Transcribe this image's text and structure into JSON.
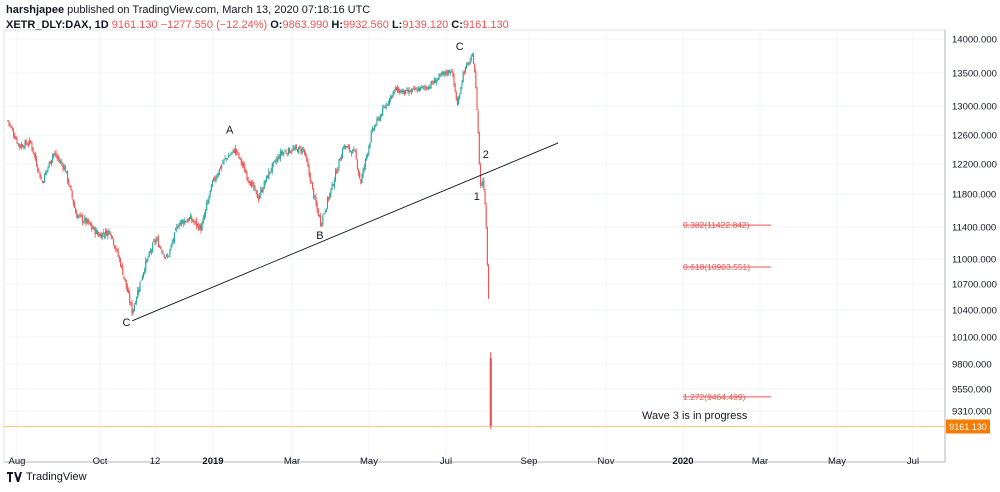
{
  "header": {
    "publisher": "harshjapee",
    "publisher_rest": "published on TradingView.com, March 13, 2020 07:18:16 UTC",
    "symbol": "XETR_DLY:DAX, 1D",
    "last": "9161.130",
    "change": "−1277.550 (−12.24%)",
    "o_label": "O:",
    "o_val": "9863.990",
    "h_label": "H:",
    "h_val": "9932.560",
    "l_label": "L:",
    "l_val": "9139.120",
    "c_label": "C:",
    "c_val": "9161.130"
  },
  "footer": {
    "brand": "TradingView"
  },
  "chart_data": {
    "type": "candlestick",
    "y_ticks": [
      14000,
      13500,
      13000,
      12600,
      12200,
      11800,
      11400,
      11000,
      10700,
      10400,
      10100,
      9800,
      9550,
      9310
    ],
    "x_tick_labels": [
      "Aug",
      "Oct",
      "12",
      "2019",
      "Mar",
      "May",
      "Jul",
      "Sep",
      "Nov",
      "2020",
      "Mar",
      "May",
      "Jul"
    ],
    "x_tick_bold": [
      false,
      false,
      false,
      true,
      false,
      false,
      false,
      false,
      false,
      true,
      false,
      false,
      false
    ],
    "price_label": "9161.130",
    "price_line_value": 9161.13,
    "path": [
      [
        "2018-07-27",
        12800
      ],
      [
        "2018-08-10",
        12450
      ],
      [
        "2018-08-24",
        12500
      ],
      [
        "2018-09-07",
        11950
      ],
      [
        "2018-09-21",
        12350
      ],
      [
        "2018-10-05",
        12150
      ],
      [
        "2018-10-19",
        11550
      ],
      [
        "2018-11-02",
        11450
      ],
      [
        "2018-11-16",
        11300
      ],
      [
        "2018-11-30",
        11350
      ],
      [
        "2018-12-14",
        10900
      ],
      [
        "2018-12-27",
        10380
      ],
      [
        "2019-01-11",
        10900
      ],
      [
        "2019-01-25",
        11250
      ],
      [
        "2019-02-08",
        11000
      ],
      [
        "2019-02-22",
        11450
      ],
      [
        "2019-03-08",
        11500
      ],
      [
        "2019-03-22",
        11380
      ],
      [
        "2019-04-05",
        11950
      ],
      [
        "2019-04-19",
        12250
      ],
      [
        "2019-05-03",
        12400
      ],
      [
        "2019-05-17",
        12050
      ],
      [
        "2019-05-31",
        11750
      ],
      [
        "2019-06-14",
        12100
      ],
      [
        "2019-06-28",
        12350
      ],
      [
        "2019-07-12",
        12400
      ],
      [
        "2019-07-26",
        12400
      ],
      [
        "2019-08-09",
        11700
      ],
      [
        "2019-08-16",
        11450
      ],
      [
        "2019-08-30",
        11900
      ],
      [
        "2019-09-13",
        12450
      ],
      [
        "2019-09-27",
        12350
      ],
      [
        "2019-10-04",
        11950
      ],
      [
        "2019-10-18",
        12650
      ],
      [
        "2019-11-01",
        12950
      ],
      [
        "2019-11-15",
        13250
      ],
      [
        "2019-11-29",
        13200
      ],
      [
        "2019-12-13",
        13250
      ],
      [
        "2019-12-27",
        13300
      ],
      [
        "2020-01-10",
        13450
      ],
      [
        "2020-01-24",
        13550
      ],
      [
        "2020-01-31",
        13000
      ],
      [
        "2020-02-07",
        13500
      ],
      [
        "2020-02-19",
        13750
      ],
      [
        "2020-02-21",
        13580
      ],
      [
        "2020-02-25",
        12800
      ],
      [
        "2020-02-28",
        11900
      ],
      [
        "2020-03-03",
        12000
      ],
      [
        "2020-03-06",
        11550
      ],
      [
        "2020-03-09",
        10600
      ],
      [
        "2020-03-11",
        10440
      ],
      [
        "2020-03-12",
        9161
      ]
    ],
    "annotations": [
      {
        "text": "C",
        "date": "2018-12-20",
        "price": 10220
      },
      {
        "text": "A",
        "date": "2019-04-26",
        "price": 12620
      },
      {
        "text": "B",
        "date": "2019-08-15",
        "price": 11250
      },
      {
        "text": "C",
        "date": "2020-02-03",
        "price": 13840
      },
      {
        "text": "2",
        "date": "2020-03-06",
        "price": 12280
      },
      {
        "text": "1",
        "date": "2020-02-24",
        "price": 11730
      }
    ],
    "trendline": {
      "start": [
        "2018-12-27",
        10280
      ],
      "end": [
        "2020-06-03",
        12490
      ]
    },
    "fib_levels": [
      {
        "label": "0.382(11422.842)",
        "value": 11422.842
      },
      {
        "label": "0.618(10903.551)",
        "value": 10903.551
      },
      {
        "label": "1.272(9464.499)",
        "value": 9464.499
      }
    ],
    "note": "Wave 3 is in progress"
  }
}
